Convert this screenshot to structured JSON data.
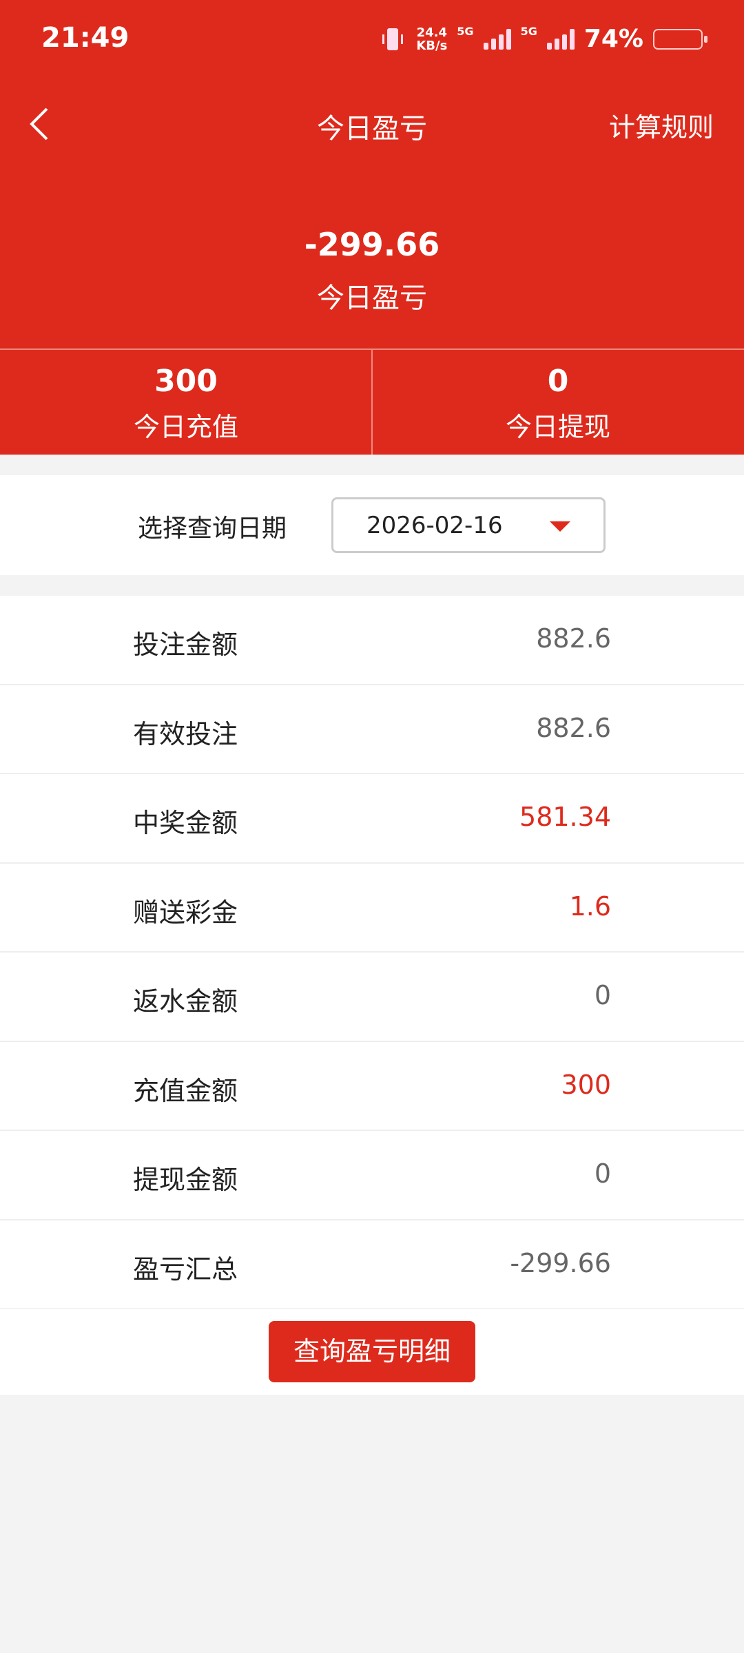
{
  "status_bar": {
    "time": "21:49",
    "net_speed_value": "24.4",
    "net_speed_unit": "KB/s",
    "sim1": "5G",
    "sim2": "5G",
    "battery": "74%",
    "icons": [
      "vibrate-icon",
      "signal-icon",
      "signal-icon",
      "battery-icon"
    ]
  },
  "header": {
    "title": "今日盈亏",
    "rules_label": "计算规则",
    "back_icon": "chevron-left-icon"
  },
  "summary": {
    "value": "-299.66",
    "label": "今日盈亏"
  },
  "stats": [
    {
      "value": "300",
      "label": "今日充值"
    },
    {
      "value": "0",
      "label": "今日提现"
    }
  ],
  "date_filter": {
    "label": "选择查询日期",
    "value": "2026-02-16"
  },
  "rows": [
    {
      "label": "投注金额",
      "value": "882.6",
      "highlight": false
    },
    {
      "label": "有效投注",
      "value": "882.6",
      "highlight": false
    },
    {
      "label": "中奖金额",
      "value": "581.34",
      "highlight": true
    },
    {
      "label": "赠送彩金",
      "value": "1.6",
      "highlight": true
    },
    {
      "label": "返水金额",
      "value": "0",
      "highlight": false
    },
    {
      "label": "充值金额",
      "value": "300",
      "highlight": true
    },
    {
      "label": "提现金额",
      "value": "0",
      "highlight": false
    },
    {
      "label": "盈亏汇总",
      "value": "-299.66",
      "highlight": false
    }
  ],
  "detail_button": "查询盈亏明细",
  "colors": {
    "brand": "#de2a1c",
    "highlight": "#de2a1c",
    "value": "#666666"
  }
}
